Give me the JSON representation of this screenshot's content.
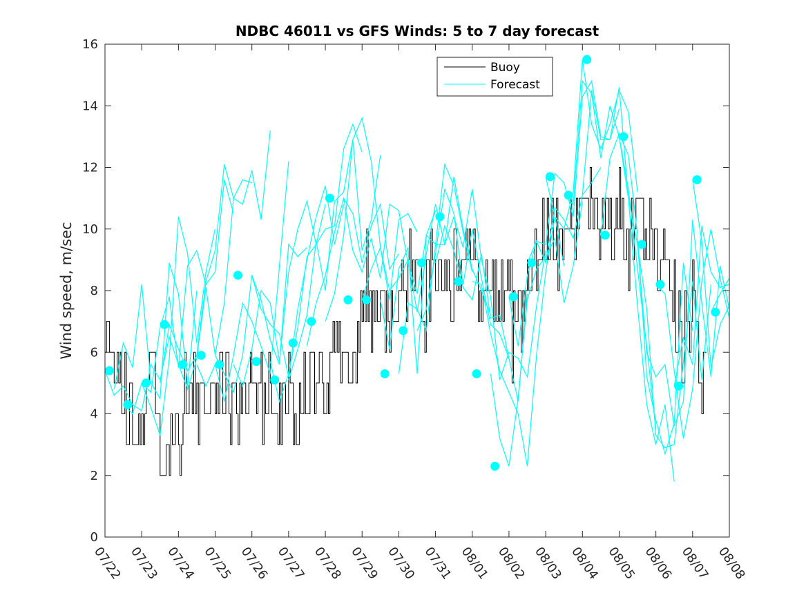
{
  "chart_data": {
    "type": "line",
    "title": "NDBC 46011 vs GFS Winds: 5 to 7 day forecast",
    "xlabel": "",
    "ylabel": "Wind speed, m/sec",
    "x_tick_labels": [
      "07/22",
      "07/23",
      "07/24",
      "07/25",
      "07/26",
      "07/27",
      "07/28",
      "07/29",
      "07/30",
      "07/31",
      "08/01",
      "08/02",
      "08/03",
      "08/04",
      "08/05",
      "08/06",
      "08/07",
      "08/08"
    ],
    "xlim": [
      0,
      17
    ],
    "ylim": [
      0,
      16
    ],
    "y_ticks": [
      0,
      2,
      4,
      6,
      8,
      10,
      12,
      14,
      16
    ],
    "grid": false,
    "legend_position": "top-right",
    "colors": {
      "buoy": "#000000",
      "forecast": "#00FFFF"
    },
    "legend": [
      {
        "label": "Buoy",
        "color": "#000000",
        "marker": "line"
      },
      {
        "label": "Forecast",
        "color": "#00FFFF",
        "marker": "line"
      }
    ],
    "buoy_anchors": [
      [
        0.0,
        6.5
      ],
      [
        0.3,
        5.0
      ],
      [
        0.6,
        4.5
      ],
      [
        0.7,
        4.0
      ],
      [
        0.8,
        3.0
      ],
      [
        1.0,
        3.5
      ],
      [
        1.2,
        5.0
      ],
      [
        1.4,
        4.0
      ],
      [
        1.5,
        3.0
      ],
      [
        1.8,
        2.5
      ],
      [
        2.0,
        3.0
      ],
      [
        2.2,
        4.5
      ],
      [
        2.5,
        4.5
      ],
      [
        2.8,
        4.0
      ],
      [
        3.0,
        4.5
      ],
      [
        3.2,
        5.0
      ],
      [
        3.5,
        4.5
      ],
      [
        3.8,
        4.5
      ],
      [
        4.0,
        4.5
      ],
      [
        4.4,
        4.5
      ],
      [
        4.8,
        4.0
      ],
      [
        5.0,
        4.5
      ],
      [
        5.2,
        4.0
      ],
      [
        5.5,
        5.0
      ],
      [
        5.8,
        5.5
      ],
      [
        6.0,
        5.0
      ],
      [
        6.3,
        6.0
      ],
      [
        6.6,
        5.5
      ],
      [
        6.8,
        6.0
      ],
      [
        7.0,
        7.0
      ],
      [
        7.2,
        7.5
      ],
      [
        7.4,
        7.5
      ],
      [
        7.6,
        7.0
      ],
      [
        7.8,
        7.5
      ],
      [
        8.0,
        8.0
      ],
      [
        8.3,
        8.5
      ],
      [
        8.5,
        9.0
      ],
      [
        8.7,
        7.5
      ],
      [
        9.0,
        9.0
      ],
      [
        9.3,
        8.5
      ],
      [
        9.6,
        9.0
      ],
      [
        9.8,
        9.5
      ],
      [
        10.0,
        9.0
      ],
      [
        10.3,
        8.0
      ],
      [
        10.5,
        7.5
      ],
      [
        10.8,
        8.5
      ],
      [
        11.0,
        8.0
      ],
      [
        11.2,
        6.5
      ],
      [
        11.4,
        7.5
      ],
      [
        11.6,
        9.0
      ],
      [
        11.8,
        9.0
      ],
      [
        12.0,
        10.5
      ],
      [
        12.2,
        10.0
      ],
      [
        12.5,
        9.0
      ],
      [
        12.8,
        10.0
      ],
      [
        13.0,
        10.5
      ],
      [
        13.3,
        10.5
      ],
      [
        13.6,
        10.0
      ],
      [
        13.8,
        10.0
      ],
      [
        14.0,
        10.5
      ],
      [
        14.3,
        9.5
      ],
      [
        14.6,
        10.5
      ],
      [
        14.8,
        10.0
      ],
      [
        15.0,
        9.5
      ],
      [
        15.2,
        9.0
      ],
      [
        15.4,
        8.5
      ],
      [
        15.6,
        7.0
      ],
      [
        15.8,
        6.0
      ],
      [
        16.0,
        7.5
      ],
      [
        16.2,
        5.5
      ],
      [
        16.4,
        5.0
      ]
    ],
    "forecast_series": [
      {
        "x": [
          0.0,
          0.25,
          0.5,
          0.75,
          1.0,
          1.25,
          1.5,
          1.75,
          2.0
        ],
        "y": [
          5.4,
          4.6,
          4.9,
          4.3,
          4.1,
          5.6,
          5.1,
          6.5,
          5.6
        ]
      },
      {
        "x": [
          0.25,
          0.5,
          0.75,
          1.0,
          1.25,
          1.5,
          1.75,
          2.0,
          2.25,
          2.5
        ],
        "y": [
          4.8,
          6.3,
          5.5,
          8.2,
          5.0,
          4.5,
          8.9,
          7.9,
          4.9,
          8.0
        ]
      },
      {
        "x": [
          0.5,
          0.75,
          1.0,
          1.25,
          1.5,
          1.75,
          2.0,
          2.25,
          2.5,
          2.75,
          3.0
        ],
        "y": [
          4.3,
          4.0,
          5.0,
          4.2,
          3.3,
          5.8,
          10.4,
          9.2,
          6.3,
          8.6,
          10.0
        ]
      },
      {
        "x": [
          1.0,
          1.25,
          1.5,
          1.75,
          2.0,
          2.25,
          2.5,
          2.75,
          3.0,
          3.25,
          3.5
        ],
        "y": [
          5.0,
          4.7,
          6.8,
          7.8,
          5.5,
          8.8,
          9.3,
          8.2,
          8.6,
          11.6,
          10.5
        ]
      },
      {
        "x": [
          1.5,
          1.75,
          2.0,
          2.25,
          2.5,
          2.75,
          3.0,
          3.25,
          3.5,
          3.75,
          4.0
        ],
        "y": [
          5.0,
          6.9,
          6.1,
          5.4,
          5.9,
          8.3,
          9.3,
          12.1,
          11.0,
          11.6,
          11.5
        ]
      },
      {
        "x": [
          2.0,
          2.25,
          2.5,
          2.75,
          3.0,
          3.25,
          3.5,
          3.75,
          4.0,
          4.25,
          4.5
        ],
        "y": [
          5.6,
          4.8,
          5.8,
          8.1,
          5.9,
          7.6,
          11.0,
          10.8,
          11.9,
          10.3,
          13.2
        ]
      },
      {
        "x": [
          2.5,
          2.75,
          3.0,
          3.25,
          3.5,
          3.75,
          4.0,
          4.25,
          4.5,
          4.75,
          5.0
        ],
        "y": [
          5.6,
          4.9,
          5.6,
          4.4,
          5.9,
          7.6,
          7.0,
          6.2,
          5.3,
          8.8,
          12.2
        ]
      },
      {
        "x": [
          3.0,
          3.25,
          3.5,
          3.75,
          4.0,
          4.25,
          4.5,
          4.75,
          5.0,
          5.25,
          5.5
        ],
        "y": [
          5.9,
          5.3,
          4.7,
          5.9,
          8.5,
          7.7,
          6.4,
          5.6,
          9.5,
          9.1,
          9.4
        ]
      },
      {
        "x": [
          3.5,
          3.75,
          4.0,
          4.25,
          4.5,
          4.75,
          5.0,
          5.25,
          5.5,
          5.75,
          6.0
        ],
        "y": [
          5.6,
          4.9,
          6.1,
          8.0,
          7.6,
          5.7,
          8.6,
          10.0,
          10.9,
          9.5,
          10.8
        ]
      },
      {
        "x": [
          4.0,
          4.25,
          4.5,
          4.75,
          5.0,
          5.25,
          5.5,
          5.75,
          6.0,
          6.25,
          6.5
        ],
        "y": [
          8.5,
          7.4,
          6.9,
          6.6,
          5.2,
          7.4,
          9.0,
          10.4,
          11.4,
          9.5,
          10.8
        ]
      },
      {
        "x": [
          4.5,
          4.75,
          5.0,
          5.25,
          5.5,
          5.75,
          6.0,
          6.25,
          6.5,
          6.75,
          7.0
        ],
        "y": [
          5.7,
          4.4,
          5.3,
          6.8,
          9.1,
          9.5,
          10.0,
          10.1,
          12.6,
          13.4,
          12.5
        ]
      },
      {
        "x": [
          5.0,
          5.25,
          5.5,
          5.75,
          6.0,
          6.25,
          6.5,
          6.75,
          7.0,
          7.25,
          7.5
        ],
        "y": [
          5.1,
          6.1,
          7.2,
          9.6,
          8.0,
          10.9,
          11.2,
          12.9,
          9.3,
          10.3,
          12.4
        ]
      },
      {
        "x": [
          5.5,
          5.75,
          6.0,
          6.25,
          6.5,
          6.75,
          7.0,
          7.25,
          7.5,
          7.75,
          8.0
        ],
        "y": [
          6.2,
          7.6,
          8.5,
          9.9,
          11.0,
          10.5,
          8.9,
          10.1,
          10.8,
          8.7,
          9.2
        ]
      },
      {
        "x": [
          6.0,
          6.25,
          6.5,
          6.75,
          7.0,
          7.25,
          7.5,
          7.75,
          8.0,
          8.25,
          8.5
        ],
        "y": [
          7.0,
          7.9,
          9.8,
          12.9,
          13.6,
          12.2,
          9.4,
          7.7,
          10.3,
          10.5,
          9.9
        ]
      },
      {
        "x": [
          6.5,
          6.75,
          7.0,
          7.25,
          7.5,
          7.75,
          8.0,
          8.25,
          8.5,
          8.75,
          9.0
        ],
        "y": [
          11.0,
          9.3,
          8.6,
          9.7,
          8.4,
          10.8,
          10.6,
          8.9,
          7.9,
          9.8,
          10.6
        ]
      },
      {
        "x": [
          7.0,
          7.25,
          7.5,
          7.75,
          8.0,
          8.25,
          8.5,
          8.75,
          9.0,
          9.25,
          9.5
        ],
        "y": [
          7.7,
          8.7,
          9.4,
          8.0,
          8.4,
          9.0,
          7.3,
          9.2,
          10.8,
          9.5,
          10.4
        ]
      },
      {
        "x": [
          7.5,
          7.75,
          8.0,
          8.25,
          8.5,
          8.75,
          9.0,
          9.25,
          9.5,
          9.75,
          10.0
        ],
        "y": [
          7.7,
          6.1,
          8.7,
          9.4,
          5.3,
          9.8,
          9.5,
          12.1,
          11.4,
          9.9,
          8.6
        ]
      },
      {
        "x": [
          8.0,
          8.25,
          8.5,
          8.75,
          9.0,
          9.25,
          9.5,
          9.75,
          10.0,
          10.25,
          10.5
        ],
        "y": [
          5.3,
          7.6,
          7.4,
          6.7,
          9.5,
          9.5,
          11.7,
          10.0,
          8.7,
          8.0,
          7.2
        ]
      },
      {
        "x": [
          8.5,
          8.75,
          9.0,
          9.25,
          9.5,
          9.75,
          10.0,
          10.25,
          10.5,
          10.75,
          11.0
        ],
        "y": [
          6.7,
          7.4,
          9.2,
          11.3,
          10.5,
          8.2,
          10.0,
          8.4,
          6.9,
          6.6,
          5.8
        ]
      },
      {
        "x": [
          9.0,
          9.25,
          9.5,
          9.75,
          10.0,
          10.25,
          10.5,
          10.75,
          11.0,
          11.25,
          11.5
        ],
        "y": [
          8.9,
          10.1,
          9.3,
          8.1,
          7.7,
          9.2,
          7.1,
          7.2,
          5.8,
          4.4,
          7.9
        ]
      },
      {
        "x": [
          9.5,
          9.75,
          10.0,
          10.25,
          10.5,
          10.75,
          11.0,
          11.25,
          11.5,
          11.75,
          12.0
        ],
        "y": [
          10.4,
          9.4,
          11.3,
          9.0,
          7.8,
          5.1,
          6.0,
          5.8,
          5.2,
          7.5,
          9.3
        ]
      },
      {
        "x": [
          10.0,
          10.25,
          10.5,
          10.75,
          11.0,
          11.25,
          11.5,
          11.75,
          12.0,
          12.25,
          12.5
        ],
        "y": [
          8.3,
          8.2,
          6.6,
          5.4,
          4.7,
          4.0,
          2.3,
          5.9,
          8.6,
          10.4,
          8.8
        ]
      },
      {
        "x": [
          10.5,
          10.75,
          11.0,
          11.25,
          11.5,
          11.75,
          12.0,
          12.25,
          12.5,
          12.75,
          13.0
        ],
        "y": [
          5.3,
          3.2,
          2.3,
          4.5,
          7.7,
          8.7,
          9.1,
          9.7,
          7.6,
          8.8,
          10.9
        ]
      },
      {
        "x": [
          11.0,
          11.25,
          11.5,
          11.75,
          12.0,
          12.25,
          12.5,
          12.75,
          13.0,
          13.25,
          13.5
        ],
        "y": [
          7.8,
          6.2,
          8.5,
          9.6,
          8.9,
          10.7,
          10.3,
          9.7,
          11.1,
          11.5,
          12.0
        ]
      },
      {
        "x": [
          11.5,
          11.75,
          12.0,
          12.25,
          12.5,
          12.75,
          13.0,
          13.25,
          13.5,
          13.75,
          14.0
        ],
        "y": [
          8.9,
          9.6,
          9.5,
          11.8,
          11.5,
          10.4,
          14.3,
          14.8,
          13.0,
          12.9,
          13.9
        ]
      },
      {
        "x": [
          12.0,
          12.25,
          12.5,
          12.75,
          13.0,
          13.25,
          13.5,
          13.75,
          14.0,
          14.25,
          14.5
        ],
        "y": [
          11.7,
          10.4,
          10.0,
          11.2,
          15.5,
          13.4,
          12.6,
          13.4,
          14.5,
          13.8,
          11.2
        ]
      },
      {
        "x": [
          12.5,
          12.75,
          13.0,
          13.25,
          13.5,
          13.75,
          14.0,
          14.25,
          14.5,
          14.75,
          15.0
        ],
        "y": [
          11.1,
          10.8,
          14.8,
          14.4,
          12.3,
          14.0,
          13.0,
          11.3,
          8.7,
          6.2,
          3.5
        ]
      },
      {
        "x": [
          13.0,
          13.25,
          13.5,
          13.75,
          14.0,
          14.25,
          14.5,
          14.75,
          15.0,
          15.25,
          15.5
        ],
        "y": [
          11.1,
          14.5,
          12.9,
          12.9,
          14.6,
          11.0,
          7.5,
          4.3,
          3.0,
          4.3,
          1.8
        ]
      },
      {
        "x": [
          13.5,
          13.75,
          14.0,
          14.25,
          14.5,
          14.75,
          15.0,
          15.25,
          15.5,
          15.75,
          16.0
        ],
        "y": [
          9.8,
          12.3,
          13.1,
          12.4,
          9.8,
          5.2,
          3.8,
          2.7,
          3.7,
          8.9,
          6.7
        ]
      },
      {
        "x": [
          14.0,
          14.25,
          14.5,
          14.75,
          15.0,
          15.25,
          15.5,
          15.75,
          16.0,
          16.25,
          16.5
        ],
        "y": [
          13.0,
          11.0,
          9.5,
          7.4,
          3.3,
          2.9,
          3.0,
          5.7,
          8.3,
          5.1,
          8.2
        ]
      },
      {
        "x": [
          14.5,
          14.75,
          15.0,
          15.25,
          15.5,
          15.75,
          16.0,
          16.25,
          16.5,
          16.75,
          17.0
        ],
        "y": [
          9.5,
          6.0,
          5.2,
          5.6,
          3.6,
          4.4,
          10.3,
          7.6,
          5.2,
          8.8,
          7.4
        ]
      },
      {
        "x": [
          15.0,
          15.25,
          15.5,
          15.75,
          16.0,
          16.25,
          16.5,
          16.75,
          17.0
        ],
        "y": [
          8.2,
          7.9,
          5.4,
          3.2,
          4.8,
          8.3,
          10.0,
          8.4,
          7.1
        ]
      },
      {
        "x": [
          15.5,
          15.75,
          16.0,
          16.25,
          16.5,
          16.75,
          17.0
        ],
        "y": [
          4.9,
          6.5,
          5.6,
          10.1,
          8.6,
          8.1,
          8.2
        ]
      },
      {
        "x": [
          16.0,
          16.25,
          16.5,
          16.75,
          17.0
        ],
        "y": [
          11.6,
          9.6,
          5.5,
          6.9,
          7.5
        ]
      },
      {
        "x": [
          16.5,
          16.75,
          17.0
        ],
        "y": [
          7.3,
          7.9,
          8.4
        ]
      }
    ],
    "forecast_markers": [
      [
        0.12,
        5.4
      ],
      [
        0.62,
        4.3
      ],
      [
        1.12,
        5.0
      ],
      [
        1.62,
        6.9
      ],
      [
        2.12,
        5.6
      ],
      [
        2.62,
        5.9
      ],
      [
        3.12,
        5.6
      ],
      [
        3.62,
        8.5
      ],
      [
        4.12,
        5.7
      ],
      [
        4.62,
        5.1
      ],
      [
        5.12,
        6.3
      ],
      [
        5.62,
        7.0
      ],
      [
        6.12,
        11.0
      ],
      [
        6.62,
        7.7
      ],
      [
        7.12,
        7.7
      ],
      [
        7.62,
        5.3
      ],
      [
        8.12,
        6.7
      ],
      [
        8.62,
        8.9
      ],
      [
        9.12,
        10.4
      ],
      [
        9.62,
        8.3
      ],
      [
        10.12,
        5.3
      ],
      [
        10.62,
        2.3
      ],
      [
        11.12,
        7.8
      ],
      [
        11.62,
        8.9
      ],
      [
        12.12,
        11.7
      ],
      [
        12.62,
        11.1
      ],
      [
        13.12,
        15.5
      ],
      [
        13.62,
        9.8
      ],
      [
        14.12,
        13.0
      ],
      [
        14.62,
        9.5
      ],
      [
        15.12,
        8.2
      ],
      [
        15.62,
        4.9
      ],
      [
        16.12,
        11.6
      ],
      [
        16.62,
        7.3
      ]
    ]
  }
}
